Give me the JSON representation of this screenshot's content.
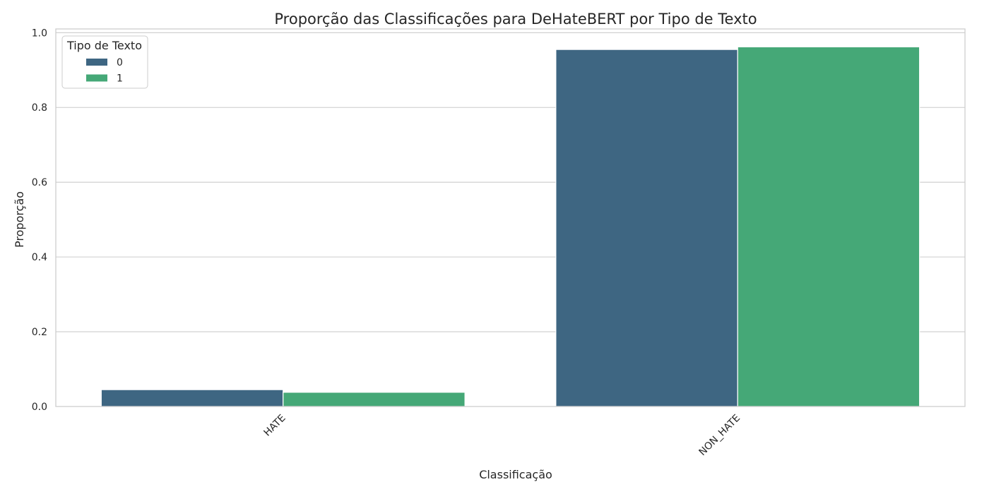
{
  "chart_data": {
    "type": "bar",
    "title": "Proporção das Classificações para DeHateBERT por Tipo de Texto",
    "xlabel": "Classificação",
    "ylabel": "Proporção",
    "categories": [
      "HATE",
      "NON_HATE"
    ],
    "series": [
      {
        "name": "0",
        "values": [
          0.045,
          0.955
        ],
        "color": "#3e6682"
      },
      {
        "name": "1",
        "values": [
          0.038,
          0.962
        ],
        "color": "#45a877"
      }
    ],
    "ylim": [
      0,
      1.01
    ],
    "yticks": [
      0.0,
      0.2,
      0.4,
      0.6,
      0.8,
      1.0
    ],
    "ytick_labels": [
      "0.0",
      "0.2",
      "0.4",
      "0.6",
      "0.8",
      "1.0"
    ],
    "grid": true,
    "legend": {
      "title": "Tipo de Texto",
      "placement": "top-left"
    },
    "colors": {
      "grid": "#cccccc",
      "spine": "#cccccc",
      "text": "#262626"
    }
  }
}
